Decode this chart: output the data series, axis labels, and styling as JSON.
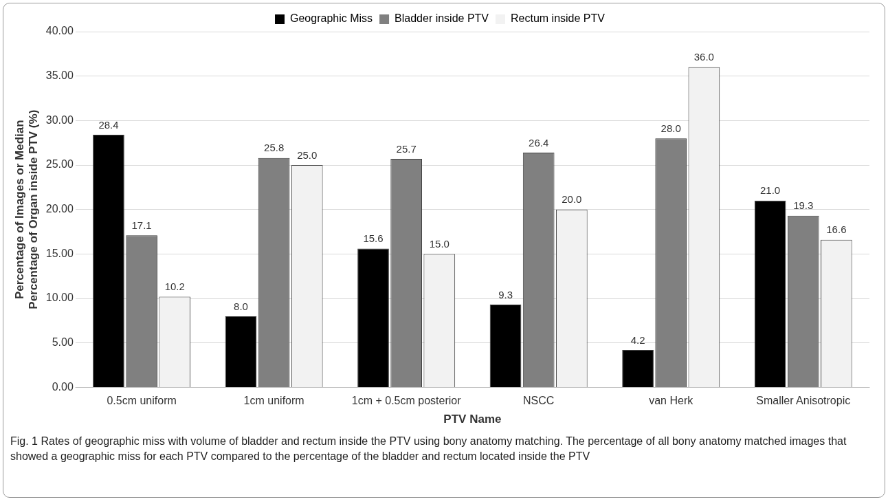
{
  "chart_data": {
    "type": "bar",
    "xlabel": "PTV Name",
    "ylabel": "Percentage of Images or Median Percentage of Organ inside PTV (%)",
    "categories": [
      "0.5cm uniform",
      "1cm uniform",
      "1cm + 0.5cm posterior",
      "NSCC",
      "van Herk",
      "Smaller Anisotropic"
    ],
    "series": [
      {
        "name": "Geographic Miss",
        "color": "#000000",
        "values": [
          28.4,
          8.0,
          15.6,
          9.3,
          4.2,
          21.0
        ],
        "value_labels": [
          "28.4",
          "8.0",
          "15.6",
          "9.3",
          "4.2",
          "21.0"
        ]
      },
      {
        "name": "Bladder inside PTV",
        "color": "#808080",
        "values": [
          17.1,
          25.8,
          25.7,
          26.4,
          28.0,
          19.3
        ],
        "value_labels": [
          "17.1",
          "25.8",
          "25.7",
          "26.4",
          "28.0",
          "19.3"
        ]
      },
      {
        "name": "Rectum inside PTV",
        "color": "#f2f2f2",
        "values": [
          10.2,
          25.0,
          15.0,
          20.0,
          36.0,
          16.6
        ],
        "value_labels": [
          "10.2",
          "25.0",
          "15.0",
          "20.0",
          "36.0",
          "16.6"
        ]
      }
    ],
    "ylim": [
      0,
      40
    ],
    "yticks": [
      {
        "value": 0,
        "label": "0.00"
      },
      {
        "value": 5,
        "label": "5.00"
      },
      {
        "value": 10,
        "label": "10.00"
      },
      {
        "value": 15,
        "label": "15.00"
      },
      {
        "value": 20,
        "label": "20.00"
      },
      {
        "value": 25,
        "label": "25.00"
      },
      {
        "value": 30,
        "label": "30.00"
      },
      {
        "value": 35,
        "label": "35.00"
      },
      {
        "value": 40,
        "label": "40.00"
      }
    ],
    "grid": "y",
    "legend": "top",
    "annotations": [
      "Fig. 1 Rates of geographic miss with volume of bladder and rectum inside the PTV using bony anatomy matching. The percentage of all bony anatomy matched images that showed a geographic miss for each PTV compared to the percentage of the bladder and rectum located inside the PTV"
    ]
  }
}
